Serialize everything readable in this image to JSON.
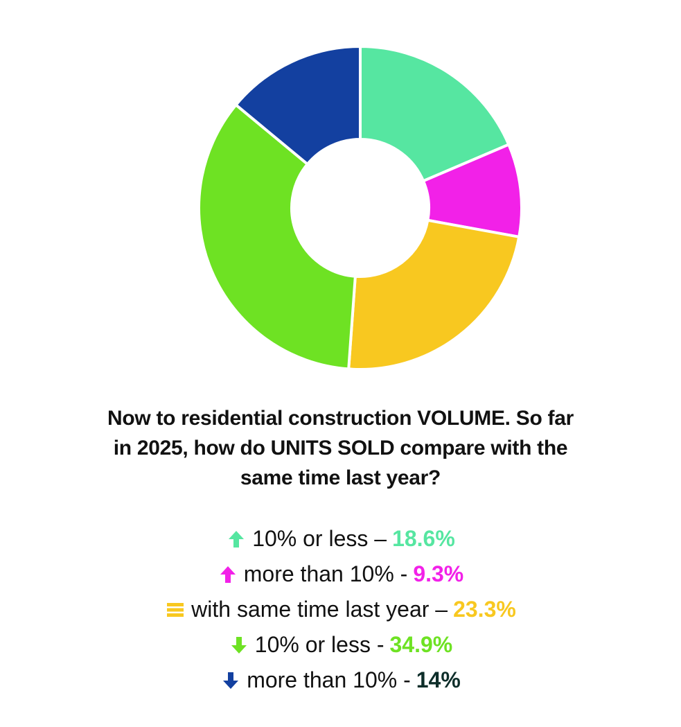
{
  "question": {
    "line1": "Now to residential construction VOLUME. So far",
    "line2": "in 2025, how do UNITS SOLD compare with the",
    "line3": "same time last year?"
  },
  "legend": [
    {
      "icon": "arrow-up-icon",
      "label": "10% or less –",
      "value": "18.6%",
      "color": "#56E6A1"
    },
    {
      "icon": "arrow-up-icon",
      "label": "more than 10% -",
      "value": "9.3%",
      "color": "#F221E8"
    },
    {
      "icon": "equal-lines-icon",
      "label": "with same time last year –",
      "value": "23.3%",
      "color": "#F8C820"
    },
    {
      "icon": "arrow-down-icon",
      "label": "10% or less -",
      "value": "34.9%",
      "color": "#6EE223"
    },
    {
      "icon": "arrow-down-icon",
      "label": "more than 10% -",
      "value": "14%",
      "color": "#1340A0",
      "value_color": "#0E2E2A"
    }
  ],
  "chart_data": {
    "type": "pie",
    "style": "donut",
    "title": "Now to residential construction VOLUME. So far in 2025, how do UNITS SOLD compare with the same time last year?",
    "categories": [
      "↑ 10% or less",
      "↑ more than 10%",
      "= with same time last year",
      "↓ 10% or less",
      "↓ more than 10%"
    ],
    "values": [
      18.6,
      9.3,
      23.3,
      34.9,
      14.0
    ],
    "colors": [
      "#56E6A1",
      "#F221E8",
      "#F8C820",
      "#6EE223",
      "#1340A0"
    ],
    "separator_color": "#FFFFFF",
    "start": "top, clockwise"
  }
}
